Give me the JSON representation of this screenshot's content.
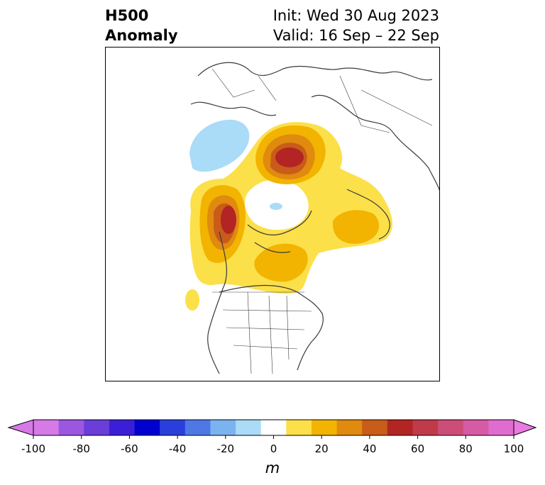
{
  "title": {
    "left_line1": "H500",
    "left_line2": "Anomaly",
    "right_line1": "Init: Wed 30 Aug 2023",
    "right_line2": "Valid: 16 Sep – 22 Sep"
  },
  "colorbar": {
    "unit": "m",
    "ticks": [
      "-100",
      "-80",
      "-60",
      "-40",
      "-20",
      "0",
      "20",
      "40",
      "60",
      "80",
      "100"
    ],
    "levels": [
      -100,
      -90,
      -80,
      -70,
      -60,
      -50,
      -40,
      -30,
      -20,
      -10,
      10,
      20,
      30,
      40,
      50,
      60,
      70,
      80,
      90,
      100
    ],
    "colors": [
      "#d67ae8",
      "#9c57e0",
      "#6b3dd9",
      "#3b1fd6",
      "#0000d0",
      "#2a3edc",
      "#4f78e6",
      "#7ab3f0",
      "#aadbf7",
      "#ffffff",
      "#fce04a",
      "#f2b400",
      "#e08a10",
      "#c85c18",
      "#b32424",
      "#c03a4a",
      "#cc4d78",
      "#d65aa4",
      "#e06cd0"
    ],
    "extend_low_color": "#d67ae8",
    "extend_high_color": "#e87ae0"
  },
  "map_colors": {
    "neg10_20": "#aadbf7",
    "pos10_20": "#fce04a",
    "pos20_30": "#f2b400",
    "pos30_40": "#e08a10",
    "pos40_50": "#c85c18",
    "pos50_60": "#b32424",
    "coast": "#3a3a3a"
  }
}
